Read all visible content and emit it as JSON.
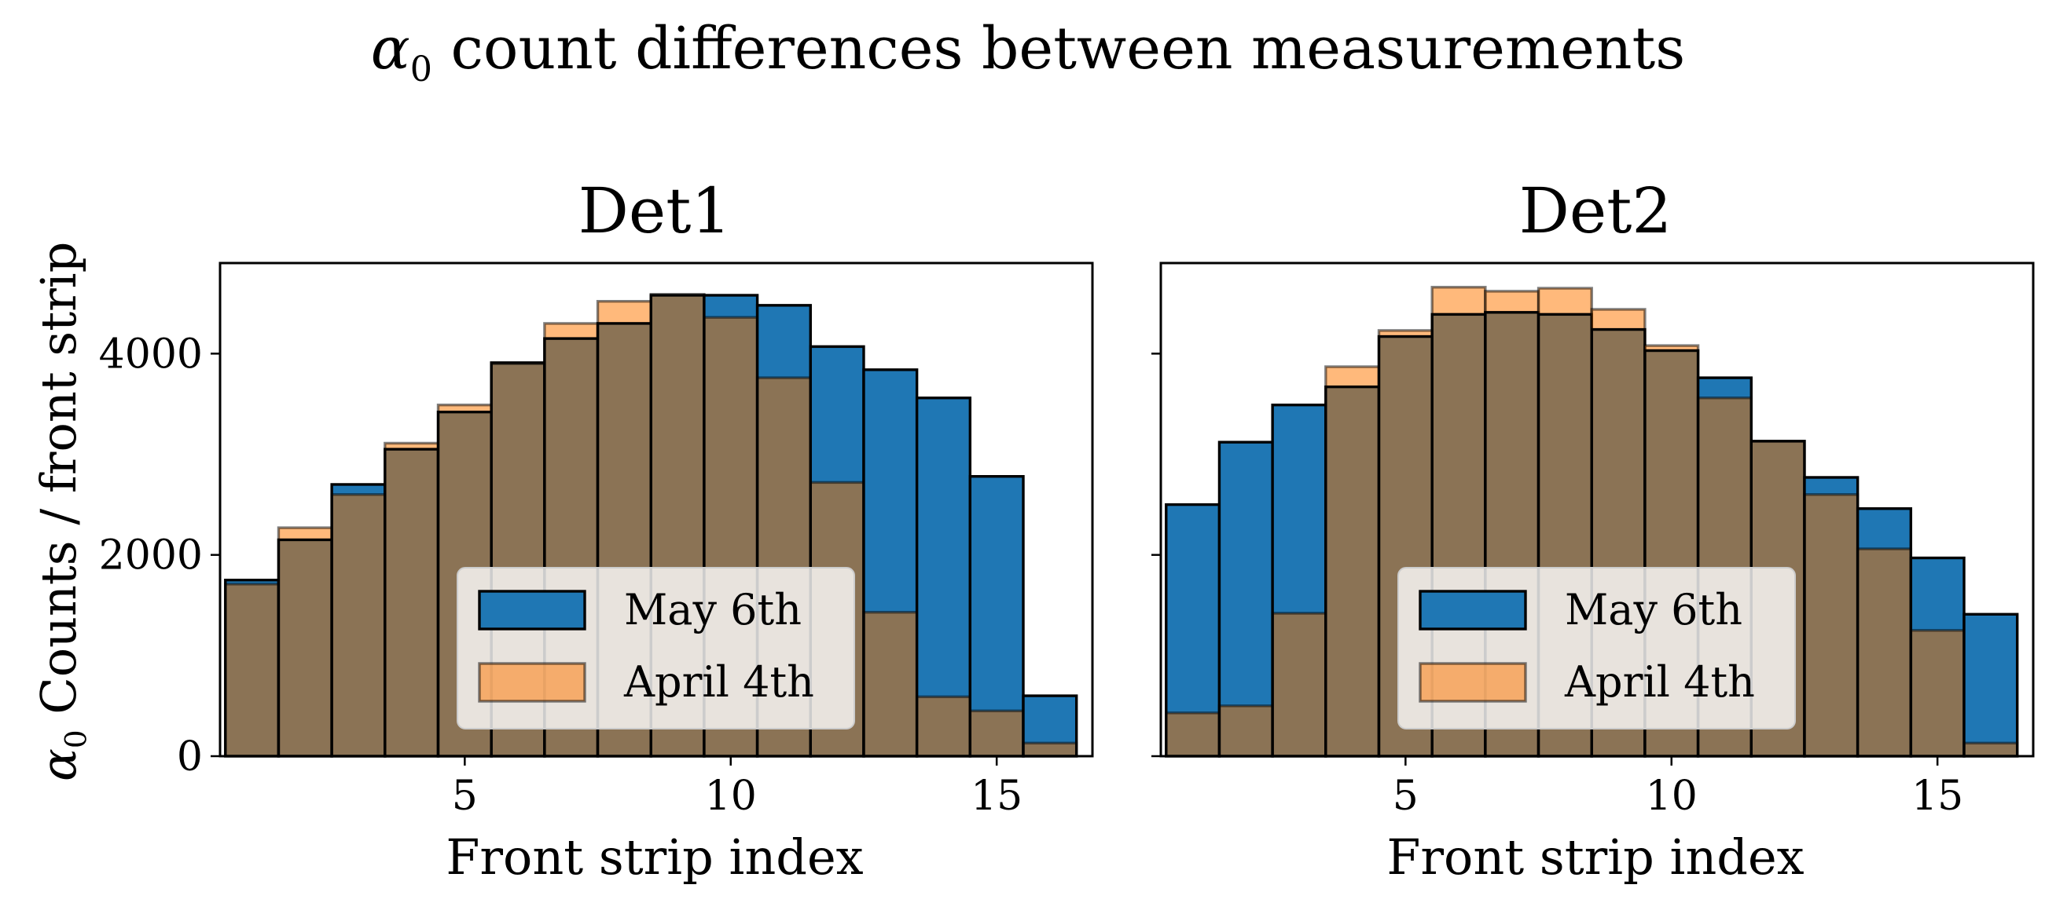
{
  "figure": {
    "suptitle_symbol": "α",
    "suptitle_sub": "0",
    "suptitle_text": " count differences between measurements",
    "ylabel_symbol": "α",
    "ylabel_sub": "0",
    "ylabel_text": " Counts / front strip"
  },
  "colors": {
    "may": "#1f77b4",
    "april": "#ff7f0e",
    "overlap": "#8b7355"
  },
  "chart_data": [
    {
      "type": "bar",
      "title": "Det1",
      "xlabel": "Front strip index",
      "ylabel": "α0 Counts / front strip",
      "x_ticks": [
        5,
        10,
        15
      ],
      "y_ticks": [
        0,
        2000,
        4000
      ],
      "xlim": [
        0.4,
        16.8
      ],
      "ylim": [
        0,
        4900
      ],
      "legend": [
        "May 6th",
        "April 4th"
      ],
      "legend_position": "lower center",
      "categories": [
        1,
        2,
        3,
        4,
        5,
        6,
        7,
        8,
        9,
        10,
        11,
        12,
        13,
        14,
        15,
        16
      ],
      "series": [
        {
          "name": "May 6th",
          "values": [
            1750,
            2150,
            2700,
            3050,
            3420,
            3910,
            4150,
            4300,
            4580,
            4580,
            4480,
            4070,
            3840,
            3560,
            2780,
            600
          ]
        },
        {
          "name": "April 4th",
          "values": [
            1710,
            2270,
            2600,
            3110,
            3490,
            3900,
            4300,
            4520,
            4590,
            4360,
            3760,
            2720,
            1430,
            590,
            450,
            130
          ]
        }
      ]
    },
    {
      "type": "bar",
      "title": "Det2",
      "xlabel": "Front strip index",
      "x_ticks": [
        5,
        10,
        15
      ],
      "y_ticks": [
        0,
        2000,
        4000
      ],
      "xlim": [
        0.4,
        16.8
      ],
      "ylim": [
        0,
        4900
      ],
      "legend": [
        "May 6th",
        "April 4th"
      ],
      "legend_position": "lower center",
      "categories": [
        1,
        2,
        3,
        4,
        5,
        6,
        7,
        8,
        9,
        10,
        11,
        12,
        13,
        14,
        15,
        16
      ],
      "series": [
        {
          "name": "May 6th",
          "values": [
            2500,
            3120,
            3490,
            3670,
            4170,
            4390,
            4410,
            4390,
            4240,
            4030,
            3760,
            3130,
            2770,
            2460,
            1970,
            1410
          ]
        },
        {
          "name": "April 4th",
          "values": [
            430,
            500,
            1420,
            3870,
            4230,
            4660,
            4620,
            4650,
            4440,
            4080,
            3560,
            3130,
            2600,
            2060,
            1250,
            130
          ]
        }
      ]
    }
  ]
}
